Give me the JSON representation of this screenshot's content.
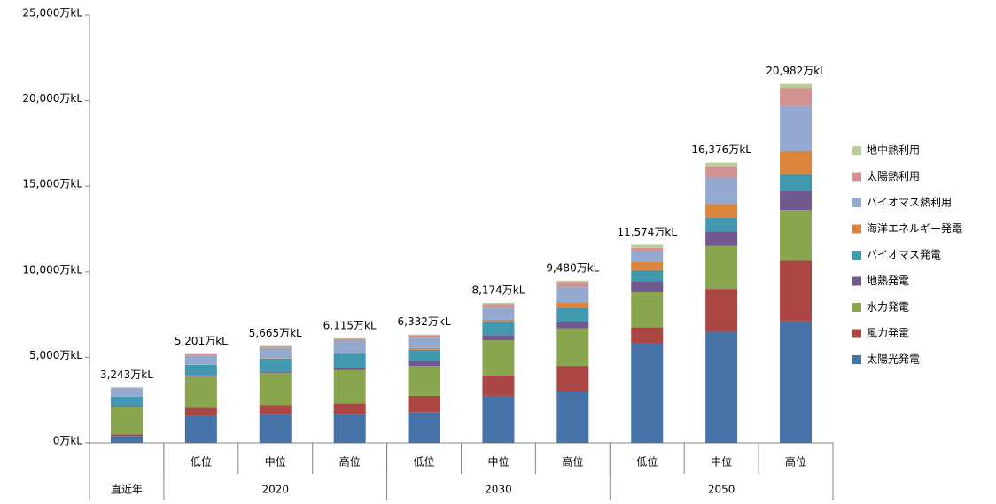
{
  "chart_data": {
    "type": "stacked_bar",
    "categories": [
      null,
      "低位",
      "中位",
      "高位",
      "低位",
      "中位",
      "高位",
      "低位",
      "中位",
      "高位"
    ],
    "category_groups": [
      {
        "label": "直近年",
        "size": 1
      },
      {
        "label": "2020",
        "size": 3
      },
      {
        "label": "2030",
        "size": 3
      },
      {
        "label": "2050",
        "size": 3
      }
    ],
    "total_labels": [
      "3,243万kL",
      "5,201万kL",
      "5,665万kL",
      "6,115万kL",
      "6,332万kL",
      "8,174万kL",
      "9,480万kL",
      "11,574万kL",
      "16,376万kL",
      "20,982万kL"
    ],
    "series": [
      {
        "name": "太陽光発電",
        "color": "#4572a7",
        "values": [
          400,
          1600,
          1700,
          1700,
          1800,
          2750,
          3000,
          5800,
          6500,
          7100
        ]
      },
      {
        "name": "風力発電",
        "color": "#aa4643",
        "values": [
          100,
          450,
          500,
          600,
          950,
          1200,
          1500,
          950,
          2500,
          3550
        ]
      },
      {
        "name": "水力発電",
        "color": "#89a54e",
        "values": [
          1600,
          1830,
          1900,
          1950,
          1750,
          2050,
          2200,
          2050,
          2500,
          2950
        ]
      },
      {
        "name": "地熱発電",
        "color": "#71588f",
        "values": [
          50,
          60,
          80,
          100,
          300,
          300,
          350,
          650,
          850,
          1100
        ]
      },
      {
        "name": "バイオマス発電",
        "color": "#4198af",
        "values": [
          550,
          620,
          750,
          850,
          650,
          750,
          850,
          650,
          800,
          1000
        ]
      },
      {
        "name": "海洋エネルギー発電",
        "color": "#db843d",
        "values": [
          0,
          10,
          20,
          30,
          100,
          150,
          300,
          500,
          800,
          1350
        ]
      },
      {
        "name": "バイオマス熱利用",
        "color": "#93a9cf",
        "values": [
          500,
          510,
          600,
          750,
          600,
          700,
          900,
          600,
          1550,
          2650
        ]
      },
      {
        "name": "太陽熱利用",
        "color": "#d19392",
        "values": [
          40,
          100,
          90,
          100,
          150,
          200,
          300,
          200,
          650,
          1050
        ]
      },
      {
        "name": "地中熱利用",
        "color": "#b9cd96",
        "values": [
          3,
          21,
          25,
          35,
          32,
          74,
          80,
          174,
          226,
          232
        ]
      }
    ],
    "ylim": [
      0,
      25000
    ],
    "yticks": [
      {
        "value": 0,
        "label": "0万kL"
      },
      {
        "value": 5000,
        "label": "5,000万kL"
      },
      {
        "value": 10000,
        "label": "10,000万kL"
      },
      {
        "value": 15000,
        "label": "15,000万kL"
      },
      {
        "value": 20000,
        "label": "20,000万kL"
      },
      {
        "value": 25000,
        "label": "25,000万kL"
      }
    ],
    "legend": "right"
  }
}
